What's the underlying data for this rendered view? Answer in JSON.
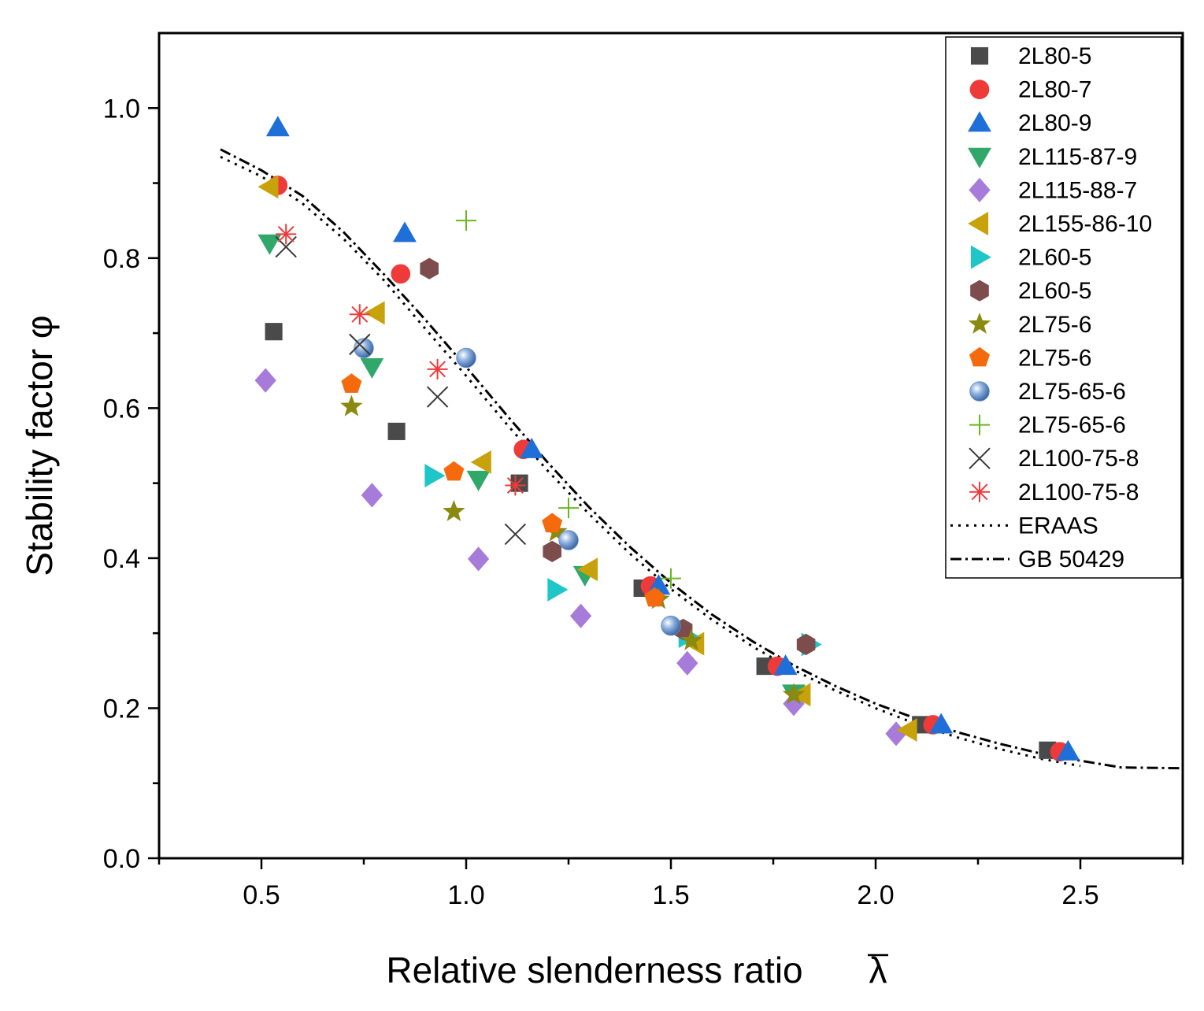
{
  "chart_data": {
    "type": "scatter",
    "xlabel": "Relative slenderness ratio",
    "xlabel_symbol": "λ",
    "ylabel": "Stability factor φ",
    "xlim": [
      0.25,
      2.75
    ],
    "ylim": [
      0.0,
      1.1
    ],
    "xticks": [
      "0.5",
      "1.0",
      "1.5",
      "2.0",
      "2.5"
    ],
    "yticks": [
      "0.0",
      "0.2",
      "0.4",
      "0.6",
      "0.8",
      "1.0"
    ],
    "legend_position": "top-right",
    "series": [
      {
        "name": "2L80-5",
        "marker": "square",
        "color": "#4a4a4a",
        "points": [
          [
            0.53,
            0.702
          ],
          [
            0.83,
            0.569
          ],
          [
            1.13,
            0.5
          ],
          [
            1.43,
            0.36
          ],
          [
            1.73,
            0.256
          ],
          [
            2.11,
            0.178
          ],
          [
            2.42,
            0.144
          ]
        ]
      },
      {
        "name": "2L80-7",
        "marker": "circle",
        "color": "#ef3a3a",
        "points": [
          [
            0.54,
            0.897
          ],
          [
            0.84,
            0.779
          ],
          [
            1.14,
            0.545
          ],
          [
            1.45,
            0.363
          ],
          [
            1.76,
            0.256
          ],
          [
            2.14,
            0.178
          ],
          [
            2.45,
            0.142
          ]
        ]
      },
      {
        "name": "2L80-9",
        "marker": "triangle-up",
        "color": "#1f6fd9",
        "points": [
          [
            0.54,
            0.974
          ],
          [
            0.85,
            0.833
          ],
          [
            1.16,
            0.545
          ],
          [
            1.47,
            0.363
          ],
          [
            1.78,
            0.256
          ],
          [
            2.16,
            0.178
          ],
          [
            2.47,
            0.142
          ]
        ]
      },
      {
        "name": "2L115-87-9",
        "marker": "triangle-down",
        "color": "#2fa86a",
        "points": [
          [
            0.52,
            0.82
          ],
          [
            0.77,
            0.655
          ],
          [
            1.03,
            0.505
          ],
          [
            1.29,
            0.378
          ],
          [
            1.8,
            0.22
          ]
        ]
      },
      {
        "name": "2L115-88-7",
        "marker": "diamond",
        "color": "#a77bd9",
        "points": [
          [
            0.51,
            0.637
          ],
          [
            0.77,
            0.484
          ],
          [
            1.03,
            0.399
          ],
          [
            1.28,
            0.323
          ],
          [
            1.54,
            0.26
          ],
          [
            1.8,
            0.206
          ],
          [
            2.05,
            0.166
          ]
        ]
      },
      {
        "name": "2L155-86-10",
        "marker": "triangle-left",
        "color": "#c8a20a",
        "points": [
          [
            0.52,
            0.895
          ],
          [
            0.78,
            0.727
          ],
          [
            1.04,
            0.528
          ],
          [
            1.3,
            0.385
          ],
          [
            1.56,
            0.286
          ],
          [
            1.82,
            0.218
          ],
          [
            2.08,
            0.171
          ]
        ]
      },
      {
        "name": "2L60-5",
        "marker": "triangle-right",
        "color": "#1ec6c8",
        "points": [
          [
            0.92,
            0.51
          ],
          [
            1.22,
            0.358
          ],
          [
            1.54,
            0.296
          ],
          [
            1.84,
            0.285
          ]
        ]
      },
      {
        "name": "2L60-5",
        "marker": "hexagon",
        "color": "#7d4c4c",
        "points": [
          [
            0.91,
            0.786
          ],
          [
            1.21,
            0.409
          ],
          [
            1.53,
            0.305
          ],
          [
            1.83,
            0.285
          ]
        ]
      },
      {
        "name": "2L75-6",
        "marker": "star",
        "color": "#8a8a10",
        "points": [
          [
            0.72,
            0.602
          ],
          [
            0.97,
            0.462
          ],
          [
            1.22,
            0.435
          ],
          [
            1.47,
            0.345
          ],
          [
            1.55,
            0.29
          ],
          [
            1.8,
            0.218
          ]
        ]
      },
      {
        "name": "2L75-6",
        "marker": "pentagon",
        "color": "#f46a0d",
        "points": [
          [
            0.72,
            0.632
          ],
          [
            0.97,
            0.515
          ],
          [
            1.21,
            0.446
          ],
          [
            1.46,
            0.347
          ]
        ]
      },
      {
        "name": "2L75-65-6",
        "marker": "sphere",
        "color": "#5b8ac9",
        "points": [
          [
            0.75,
            0.68
          ],
          [
            1.0,
            0.667
          ],
          [
            1.25,
            0.424
          ],
          [
            1.5,
            0.31
          ]
        ]
      },
      {
        "name": "2L75-65-6",
        "marker": "plus",
        "color": "#6ab820",
        "points": [
          [
            1.0,
            0.85
          ],
          [
            1.25,
            0.467
          ],
          [
            1.5,
            0.373
          ]
        ]
      },
      {
        "name": "2L100-75-8",
        "marker": "x",
        "color": "#3a3a3a",
        "points": [
          [
            0.56,
            0.815
          ],
          [
            0.74,
            0.685
          ],
          [
            0.93,
            0.615
          ],
          [
            1.12,
            0.432
          ]
        ]
      },
      {
        "name": "2L100-75-8",
        "marker": "asterisk",
        "color": "#ef3a3a",
        "points": [
          [
            0.56,
            0.832
          ],
          [
            0.74,
            0.725
          ],
          [
            0.93,
            0.652
          ],
          [
            1.12,
            0.497
          ]
        ]
      }
    ],
    "curves": [
      {
        "name": "ERAAS",
        "style": "dotted",
        "points": [
          [
            0.4,
            0.935
          ],
          [
            0.5,
            0.909
          ],
          [
            0.6,
            0.873
          ],
          [
            0.7,
            0.826
          ],
          [
            0.8,
            0.77
          ],
          [
            0.9,
            0.706
          ],
          [
            1.0,
            0.643
          ],
          [
            1.1,
            0.578
          ],
          [
            1.2,
            0.516
          ],
          [
            1.3,
            0.459
          ],
          [
            1.4,
            0.406
          ],
          [
            1.5,
            0.359
          ],
          [
            1.6,
            0.318
          ],
          [
            1.7,
            0.282
          ],
          [
            1.8,
            0.251
          ],
          [
            1.9,
            0.224
          ],
          [
            2.0,
            0.2
          ],
          [
            2.1,
            0.179
          ],
          [
            2.2,
            0.161
          ],
          [
            2.3,
            0.146
          ],
          [
            2.4,
            0.133
          ],
          [
            2.5,
            0.123
          ]
        ]
      },
      {
        "name": "GB 50429",
        "style": "dashdot",
        "points": [
          [
            0.4,
            0.945
          ],
          [
            0.5,
            0.917
          ],
          [
            0.6,
            0.883
          ],
          [
            0.7,
            0.835
          ],
          [
            0.8,
            0.778
          ],
          [
            0.9,
            0.718
          ],
          [
            1.0,
            0.655
          ],
          [
            1.1,
            0.59
          ],
          [
            1.2,
            0.527
          ],
          [
            1.3,
            0.468
          ],
          [
            1.4,
            0.415
          ],
          [
            1.5,
            0.367
          ],
          [
            1.6,
            0.325
          ],
          [
            1.7,
            0.289
          ],
          [
            1.8,
            0.257
          ],
          [
            1.9,
            0.23
          ],
          [
            2.0,
            0.206
          ],
          [
            2.1,
            0.186
          ],
          [
            2.2,
            0.168
          ],
          [
            2.3,
            0.153
          ],
          [
            2.4,
            0.14
          ],
          [
            2.5,
            0.13
          ],
          [
            2.6,
            0.121
          ],
          [
            2.75,
            0.12
          ]
        ]
      }
    ]
  }
}
